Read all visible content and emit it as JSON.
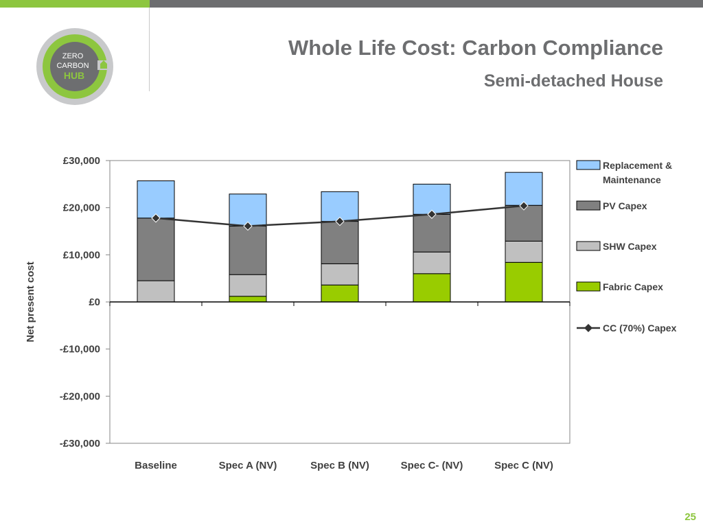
{
  "header": {
    "title": "Whole Life Cost: Carbon Compliance",
    "subtitle": "Semi-detached House",
    "logo_lines": [
      "ZERO",
      "CARBON",
      "HUB"
    ]
  },
  "footer": {
    "page_number": "25"
  },
  "colors": {
    "accent_green": "#8dc63f",
    "bar_grey": "#6d6e70",
    "replacement": "#99ccff",
    "pv": "#808080",
    "shw": "#c0c0c0",
    "fabric": "#99cc00",
    "line": "#333333"
  },
  "chart_data": {
    "type": "bar",
    "stacked": true,
    "title": "",
    "xlabel": "",
    "ylabel": "Net present cost",
    "ylim": [
      -30000,
      30000
    ],
    "ytick_values": [
      30000,
      20000,
      10000,
      0,
      -10000,
      -20000,
      -30000
    ],
    "ytick_labels": [
      "£30,000",
      "£20,000",
      "£10,000",
      "£0",
      "-£10,000",
      "-£20,000",
      "-£30,000"
    ],
    "categories": [
      "Baseline",
      "Spec A (NV)",
      "Spec B (NV)",
      "Spec C- (NV)",
      "Spec C (NV)"
    ],
    "series": [
      {
        "name": "Fabric Capex",
        "values": [
          0,
          1200,
          3600,
          6000,
          8400
        ]
      },
      {
        "name": "SHW Capex",
        "values": [
          4500,
          4600,
          4500,
          4600,
          4500
        ]
      },
      {
        "name": "PV Capex",
        "values": [
          13300,
          10300,
          9000,
          8000,
          7600
        ]
      },
      {
        "name": "Replacement & Maintenance",
        "values": [
          7900,
          6800,
          6300,
          6400,
          7000
        ]
      }
    ],
    "line_series": {
      "name": "CC (70%) Capex",
      "values": [
        17800,
        16100,
        17100,
        18600,
        20400
      ]
    },
    "legend": {
      "placement": "right",
      "entries": [
        {
          "lines": [
            "Replacement &",
            "Maintenance"
          ]
        },
        {
          "lines": [
            "PV Capex"
          ]
        },
        {
          "lines": [
            "SHW Capex"
          ]
        },
        {
          "lines": [
            "Fabric Capex"
          ]
        },
        {
          "lines": [
            "CC (70%) Capex"
          ]
        }
      ]
    },
    "grid": false
  }
}
